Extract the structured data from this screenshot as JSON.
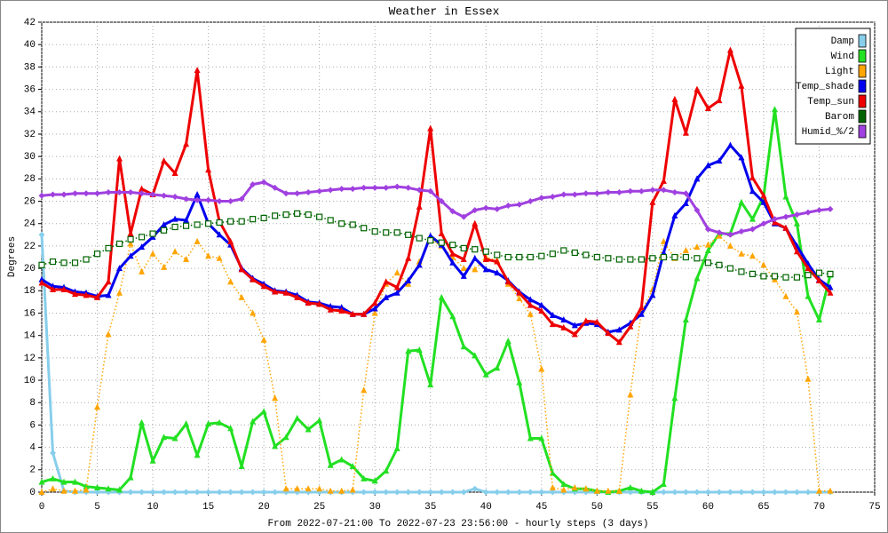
{
  "chart_data": {
    "type": "line",
    "title": "Weather in Essex",
    "x_label": "From 2022-07-21:00 To 2022-07-23 23:56:00 - hourly steps (3 days)",
    "y_label": "Degrees",
    "x": [
      0,
      1,
      2,
      3,
      4,
      5,
      6,
      7,
      8,
      9,
      10,
      11,
      12,
      13,
      14,
      15,
      16,
      17,
      18,
      19,
      20,
      21,
      22,
      23,
      24,
      25,
      26,
      27,
      28,
      29,
      30,
      31,
      32,
      33,
      34,
      35,
      36,
      37,
      38,
      39,
      40,
      41,
      42,
      43,
      44,
      45,
      46,
      47,
      48,
      49,
      50,
      51,
      52,
      53,
      54,
      55,
      56,
      57,
      58,
      59,
      60,
      61,
      62,
      63,
      64,
      65,
      66,
      67,
      68,
      69,
      70,
      71
    ],
    "xlim": [
      0,
      75
    ],
    "xticks": [
      0,
      5,
      10,
      15,
      20,
      25,
      30,
      35,
      40,
      45,
      50,
      55,
      60,
      65,
      70,
      75
    ],
    "ylim": [
      0,
      42
    ],
    "yticks": [
      0,
      2,
      4,
      6,
      8,
      10,
      12,
      14,
      16,
      18,
      20,
      22,
      24,
      26,
      28,
      30,
      32,
      34,
      36,
      38,
      40,
      42
    ],
    "grid": true,
    "legend": "top-right",
    "series": [
      {
        "name": "Damp",
        "color": "#87ceeb",
        "line": "solid",
        "marker": "diamond",
        "values": [
          23,
          3.5,
          0.1,
          0,
          0,
          0,
          0,
          0,
          0,
          0,
          0,
          0,
          0,
          0,
          0,
          0,
          0,
          0,
          0,
          0,
          0,
          0,
          0,
          0,
          0,
          0,
          0,
          0,
          0,
          0,
          0,
          0,
          0,
          0,
          0,
          0,
          0,
          0,
          0,
          0.3,
          0,
          0,
          0,
          0,
          0,
          0,
          0,
          0,
          0,
          0,
          0,
          0,
          0,
          0,
          0,
          0,
          0,
          0,
          0,
          0,
          0,
          0,
          0,
          0,
          0,
          0,
          0,
          0,
          0,
          0,
          0,
          0
        ]
      },
      {
        "name": "Wind",
        "color": "#22e022",
        "line": "solid",
        "marker": "triangle",
        "values": [
          0.9,
          1.2,
          0.9,
          0.9,
          0.5,
          0.4,
          0.3,
          0.2,
          1.3,
          6.2,
          2.8,
          4.9,
          4.8,
          6.1,
          3.3,
          6.1,
          6.2,
          5.7,
          2.3,
          6.3,
          7.2,
          4.1,
          4.9,
          6.6,
          5.6,
          6.4,
          2.4,
          2.9,
          2.3,
          1.2,
          1.0,
          1.9,
          3.9,
          12.6,
          12.7,
          9.6,
          17.4,
          15.7,
          13.0,
          12.2,
          10.5,
          11.1,
          13.5,
          9.8,
          4.8,
          4.8,
          1.7,
          0.7,
          0.3,
          0.3,
          0.1,
          0.0,
          0.1,
          0.4,
          0.1,
          0.0,
          0.7,
          8.4,
          15.4,
          19.1,
          21.6,
          23.1,
          23.1,
          25.9,
          24.4,
          26.4,
          34.2,
          26.4,
          24.0,
          17.5,
          15.4,
          19.4
        ]
      },
      {
        "name": "Light",
        "color": "#ffa500",
        "line": "dotted",
        "marker": "triangle",
        "values": [
          0,
          0.3,
          0.1,
          0.1,
          0.2,
          7.6,
          14.1,
          17.8,
          22.2,
          19.7,
          21.3,
          20.1,
          21.5,
          20.8,
          22.4,
          21.1,
          20.9,
          18.8,
          17.4,
          16.0,
          13.6,
          8.4,
          0.3,
          0.3,
          0.3,
          0.3,
          0.1,
          0.1,
          0.2,
          9.1,
          16.0,
          18.6,
          19.6,
          18.6,
          20.6,
          22.5,
          22.0,
          21.0,
          20.0,
          19.9,
          21.0,
          20.7,
          18.6,
          17.3,
          15.9,
          11.0,
          0.4,
          0.2,
          0.4,
          0.3,
          0.1,
          0.1,
          0.1,
          8.7,
          16.2,
          18.1,
          22.4,
          20.9,
          21.6,
          21.9,
          22.1,
          22.9,
          22.0,
          21.3,
          21.1,
          20.3,
          19.0,
          17.5,
          16.1,
          10.1,
          0.1,
          0.1
        ]
      },
      {
        "name": "Temp_shade",
        "color": "#0000ee",
        "line": "solid",
        "marker": "triangle",
        "values": [
          19.0,
          18.4,
          18.3,
          17.9,
          17.8,
          17.5,
          17.6,
          20.0,
          21.1,
          21.9,
          22.8,
          23.9,
          24.4,
          24.3,
          26.6,
          24.0,
          23.0,
          22.1,
          20.0,
          19.1,
          18.6,
          18.0,
          17.9,
          17.6,
          17.0,
          16.9,
          16.6,
          16.5,
          15.9,
          15.9,
          16.4,
          17.4,
          17.8,
          18.9,
          20.3,
          22.9,
          22.1,
          20.5,
          19.3,
          20.9,
          19.9,
          19.6,
          18.9,
          17.9,
          17.2,
          16.7,
          15.8,
          15.4,
          14.9,
          15.1,
          15.0,
          14.3,
          14.5,
          15.1,
          15.9,
          17.6,
          21.4,
          24.7,
          25.8,
          28.0,
          29.2,
          29.6,
          31.0,
          29.9,
          26.9,
          25.9,
          24.0,
          23.6,
          22.0,
          20.4,
          19.0,
          18.3
        ]
      },
      {
        "name": "Temp_sun",
        "color": "#ee0000",
        "line": "solid",
        "marker": "triangle",
        "values": [
          18.7,
          18.1,
          18.1,
          17.7,
          17.6,
          17.4,
          18.8,
          29.8,
          23.1,
          27.1,
          26.6,
          29.6,
          28.5,
          31.1,
          37.7,
          28.8,
          24.2,
          22.4,
          19.9,
          19.0,
          18.4,
          17.9,
          17.8,
          17.4,
          16.9,
          16.8,
          16.3,
          16.2,
          15.9,
          15.9,
          16.9,
          18.8,
          18.3,
          20.9,
          25.5,
          32.5,
          23.1,
          21.3,
          20.8,
          24.0,
          20.8,
          20.6,
          18.8,
          17.8,
          16.7,
          16.2,
          15.0,
          14.7,
          14.1,
          15.3,
          15.2,
          14.2,
          13.4,
          14.8,
          16.5,
          25.9,
          27.8,
          35.1,
          32.1,
          36.0,
          34.3,
          35.0,
          39.5,
          36.3,
          28.1,
          26.5,
          24.1,
          23.6,
          21.5,
          20.0,
          18.9,
          17.8
        ]
      },
      {
        "name": "Barom",
        "color": "#006400",
        "line": "dotted",
        "marker": "square",
        "values": [
          20.3,
          20.6,
          20.5,
          20.5,
          20.8,
          21.3,
          21.8,
          22.2,
          22.6,
          22.8,
          23.1,
          23.4,
          23.7,
          23.8,
          23.9,
          24.0,
          24.1,
          24.2,
          24.2,
          24.4,
          24.5,
          24.7,
          24.8,
          24.9,
          24.8,
          24.6,
          24.3,
          24.0,
          23.9,
          23.6,
          23.3,
          23.2,
          23.2,
          23.0,
          22.7,
          22.5,
          22.3,
          22.1,
          21.8,
          21.7,
          21.5,
          21.2,
          21.0,
          21.0,
          21.0,
          21.1,
          21.3,
          21.6,
          21.4,
          21.2,
          21.0,
          20.9,
          20.8,
          20.8,
          20.8,
          20.9,
          21.0,
          21.0,
          21.0,
          20.9,
          20.5,
          20.3,
          20.0,
          19.7,
          19.5,
          19.3,
          19.3,
          19.2,
          19.2,
          19.4,
          19.6,
          19.5
        ]
      },
      {
        "name": "Humid_%/2",
        "color": "#a040e0",
        "line": "solid",
        "marker": "diamond",
        "values": [
          26.5,
          26.6,
          26.6,
          26.7,
          26.7,
          26.7,
          26.8,
          26.8,
          26.8,
          26.7,
          26.6,
          26.5,
          26.4,
          26.2,
          26.1,
          26.1,
          26.0,
          26.0,
          26.2,
          27.5,
          27.7,
          27.2,
          26.7,
          26.7,
          26.8,
          26.9,
          27.0,
          27.1,
          27.1,
          27.2,
          27.2,
          27.2,
          27.3,
          27.2,
          27.0,
          26.9,
          26.0,
          25.1,
          24.6,
          25.2,
          25.4,
          25.3,
          25.6,
          25.7,
          26.0,
          26.3,
          26.4,
          26.6,
          26.6,
          26.7,
          26.7,
          26.8,
          26.8,
          26.9,
          26.9,
          27.0,
          27.0,
          26.8,
          26.7,
          25.2,
          23.5,
          23.2,
          23.0,
          23.3,
          23.5,
          24.0,
          24.4,
          24.6,
          24.8,
          25.0,
          25.2,
          25.3
        ]
      }
    ]
  }
}
